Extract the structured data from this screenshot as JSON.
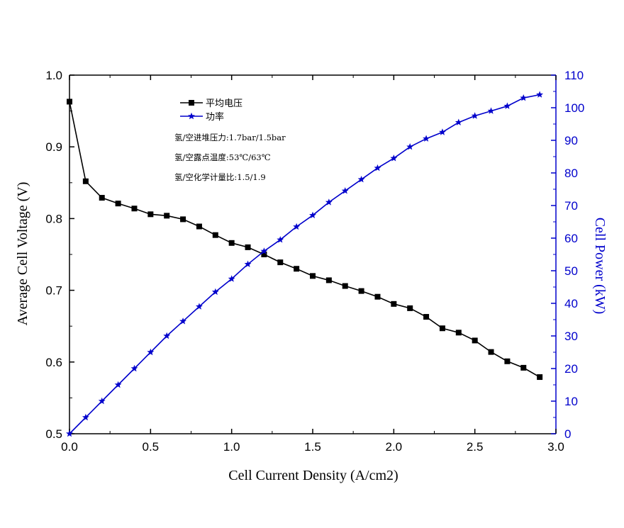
{
  "chart_data": {
    "type": "line",
    "xlabel": "Cell Current Density  (A/cm2)",
    "ylabel": "Average Cell Voltage  (V)",
    "y2label": "Cell Power (kW)",
    "xlim": [
      0.0,
      3.0
    ],
    "ylim": [
      0.5,
      1.0
    ],
    "y2lim": [
      0,
      110
    ],
    "x_ticks": [
      "0.0",
      "0.5",
      "1.0",
      "1.5",
      "2.0",
      "2.5",
      "3.0"
    ],
    "y_ticks": [
      "0.5",
      "0.6",
      "0.7",
      "0.8",
      "0.9",
      "1.0"
    ],
    "y2_ticks": [
      "0",
      "10",
      "20",
      "30",
      "40",
      "50",
      "60",
      "70",
      "80",
      "90",
      "100",
      "110"
    ],
    "grid": false,
    "legend_position": "top-left",
    "series": [
      {
        "name": "平均电压",
        "axis": "left",
        "marker": "square",
        "color": "#000000",
        "x": [
          0.0,
          0.1,
          0.2,
          0.3,
          0.4,
          0.5,
          0.6,
          0.7,
          0.8,
          0.9,
          1.0,
          1.1,
          1.2,
          1.3,
          1.4,
          1.5,
          1.6,
          1.7,
          1.8,
          1.9,
          2.0,
          2.1,
          2.2,
          2.3,
          2.4,
          2.5,
          2.6,
          2.7,
          2.8,
          2.9
        ],
        "values": [
          0.963,
          0.852,
          0.829,
          0.821,
          0.814,
          0.806,
          0.804,
          0.799,
          0.789,
          0.777,
          0.766,
          0.76,
          0.75,
          0.739,
          0.73,
          0.72,
          0.714,
          0.706,
          0.699,
          0.691,
          0.681,
          0.675,
          0.663,
          0.647,
          0.641,
          0.63,
          0.614,
          0.601,
          0.592,
          0.579
        ]
      },
      {
        "name": "功率",
        "axis": "right",
        "marker": "star",
        "color": "#0000cc",
        "x": [
          0.0,
          0.1,
          0.2,
          0.3,
          0.4,
          0.5,
          0.6,
          0.7,
          0.8,
          0.9,
          1.0,
          1.1,
          1.2,
          1.3,
          1.4,
          1.5,
          1.6,
          1.7,
          1.8,
          1.9,
          2.0,
          2.1,
          2.2,
          2.3,
          2.4,
          2.5,
          2.6,
          2.7,
          2.8,
          2.9
        ],
        "values": [
          0,
          5,
          10,
          15,
          20,
          25,
          30,
          34.5,
          39,
          43.5,
          47.5,
          52,
          56,
          59.5,
          63.5,
          67,
          71,
          74.5,
          78,
          81.5,
          84.5,
          88,
          90.5,
          92.5,
          95.5,
          97.5,
          99,
          100.5,
          103,
          104
        ]
      }
    ],
    "annotations": [
      "氢/空进堆压力:1.7bar/1.5bar",
      "氢/空露点温度:53℃/63℃",
      "氢/空化学计量比:1.5/1.9"
    ]
  },
  "colors": {
    "voltage": "#000000",
    "power": "#0000cc"
  }
}
